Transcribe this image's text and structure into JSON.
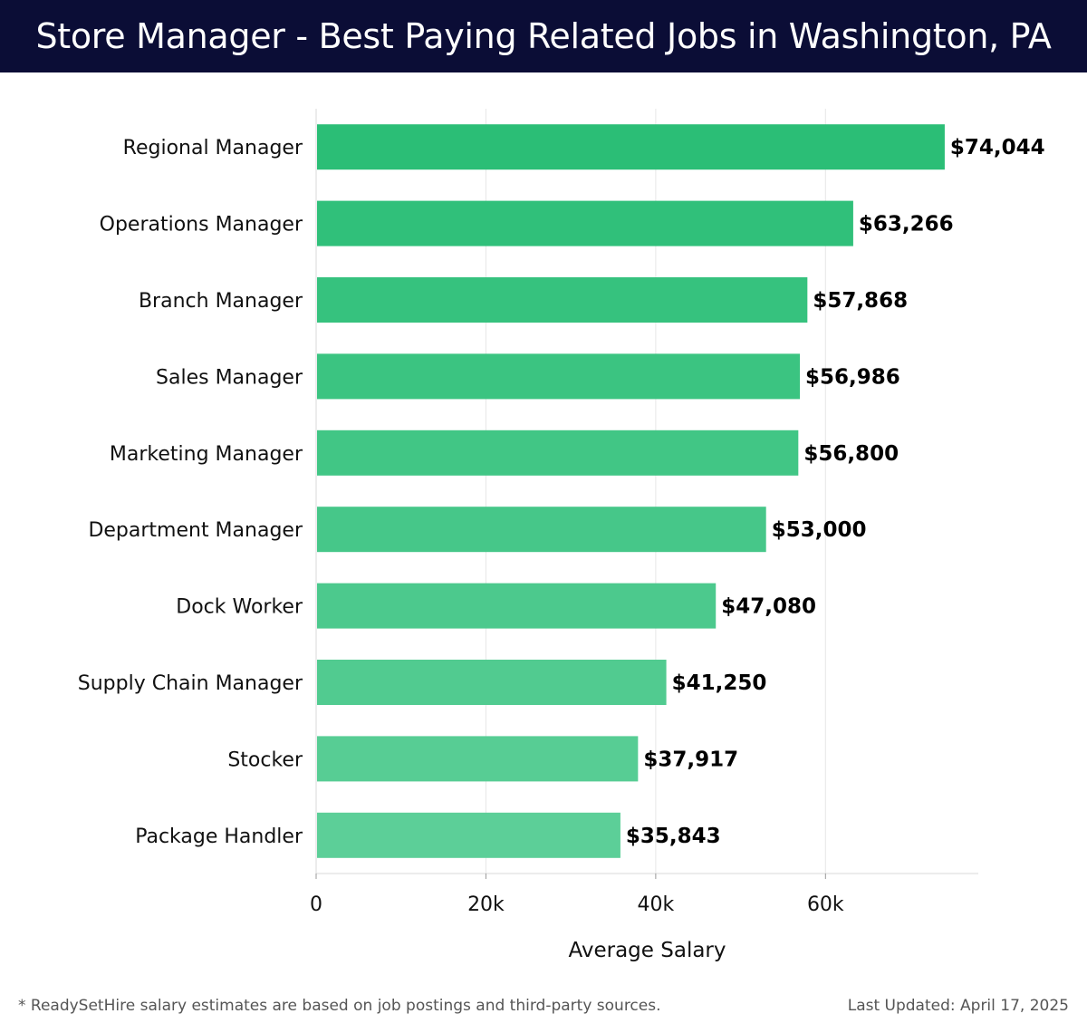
{
  "header": {
    "title": "Store Manager - Best Paying Related Jobs in Washington, PA"
  },
  "chart_data": {
    "type": "bar",
    "orientation": "horizontal",
    "categories": [
      "Regional Manager",
      "Operations Manager",
      "Branch Manager",
      "Sales Manager",
      "Marketing Manager",
      "Department Manager",
      "Dock Worker",
      "Supply Chain Manager",
      "Stocker",
      "Package Handler"
    ],
    "values": [
      74044,
      63266,
      57868,
      56986,
      56800,
      53000,
      47080,
      41250,
      37917,
      35843
    ],
    "value_labels": [
      "$74,044",
      "$63,266",
      "$57,868",
      "$56,986",
      "$56,800",
      "$53,000",
      "$47,080",
      "$41,250",
      "$37,917",
      "$35,843"
    ],
    "xlabel": "Average Salary",
    "ylabel": "",
    "xlim": [
      0,
      78000
    ],
    "xticks": [
      0,
      20000,
      40000,
      60000
    ],
    "xtick_labels": [
      "0",
      "20k",
      "40k",
      "60k"
    ],
    "grid": "vertical",
    "bar_color_start": "#2bbe76",
    "bar_color_end": "#5ccf98"
  },
  "footer": {
    "note": "* ReadySetHire salary estimates are based on job postings and third-party sources.",
    "updated": "Last Updated: April 17, 2025"
  }
}
